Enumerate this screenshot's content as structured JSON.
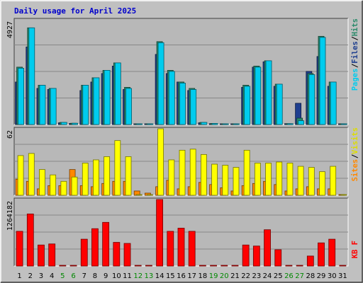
{
  "chart_data": [
    {
      "type": "bar",
      "title": "Daily usage for April 2025",
      "categories": [
        "1",
        "2",
        "3",
        "4",
        "5",
        "6",
        "7",
        "8",
        "9",
        "10",
        "11",
        "12",
        "13",
        "14",
        "15",
        "16",
        "17",
        "18",
        "19",
        "20",
        "21",
        "22",
        "23",
        "24",
        "25",
        "26",
        "27",
        "28",
        "29",
        "30",
        "31"
      ],
      "weekend_days": [
        "5",
        "6",
        "12",
        "13",
        "19",
        "20",
        "26",
        "27"
      ],
      "ymax_label": "4927",
      "ylim": [
        0,
        4927
      ],
      "legend": [
        "Pages",
        "Files",
        "Hits"
      ],
      "series": [
        {
          "name": "Pages",
          "color": "#1f3f8f",
          "values": [
            2000,
            3650,
            1700,
            1650,
            80,
            50,
            1600,
            2000,
            2400,
            2750,
            1650,
            0,
            0,
            3300,
            2400,
            2000,
            1600,
            80,
            40,
            0,
            0,
            1750,
            2700,
            2950,
            1800,
            40,
            1000,
            2500,
            3200,
            1800,
            0
          ]
        },
        {
          "name": "Files",
          "color": "#2a8a6a",
          "values": [
            2700,
            4550,
            1850,
            1700,
            100,
            60,
            1850,
            2200,
            2550,
            2900,
            1750,
            0,
            0,
            3900,
            2550,
            2000,
            1700,
            100,
            50,
            0,
            0,
            1850,
            2750,
            3000,
            1900,
            40,
            300,
            2400,
            4150,
            2000,
            0
          ]
        },
        {
          "name": "Hits",
          "color": "#00ccee",
          "values": [
            2650,
            4550,
            1850,
            1700,
            100,
            60,
            1850,
            2200,
            2550,
            2900,
            1700,
            0,
            0,
            3850,
            2500,
            1950,
            1650,
            100,
            50,
            0,
            0,
            1800,
            2700,
            3000,
            1900,
            40,
            180,
            2350,
            4100,
            2000,
            0
          ]
        }
      ]
    },
    {
      "type": "bar",
      "ymax_label": "62",
      "ylim": [
        0,
        62
      ],
      "legend": [
        "Sites",
        "Visits"
      ],
      "series": [
        {
          "name": "Sites",
          "color": "#ff8800",
          "values": [
            15,
            13,
            6,
            9,
            9,
            24,
            9,
            8,
            11,
            13,
            13,
            4,
            2,
            8,
            14,
            6,
            8,
            12,
            10,
            7,
            4,
            9,
            11,
            13,
            10,
            4,
            6,
            8,
            6,
            6,
            0
          ]
        },
        {
          "name": "Visits",
          "color": "#ffff00",
          "values": [
            37,
            39,
            24,
            19,
            13,
            17,
            30,
            33,
            36,
            51,
            36,
            0,
            0,
            62,
            33,
            42,
            43,
            38,
            29,
            28,
            26,
            42,
            30,
            30,
            31,
            30,
            27,
            26,
            22,
            27,
            0
          ]
        }
      ]
    },
    {
      "type": "bar",
      "ymax_label": "1264182",
      "ylim": [
        0,
        1264182
      ],
      "legend": [
        "KB F"
      ],
      "series": [
        {
          "name": "KB F",
          "color": "#ff0000",
          "values": [
            660000,
            990000,
            400000,
            420000,
            0,
            0,
            510000,
            710000,
            830000,
            450000,
            430000,
            0,
            0,
            1264182,
            660000,
            720000,
            660000,
            0,
            0,
            0,
            0,
            400000,
            380000,
            690000,
            310000,
            0,
            0,
            190000,
            440000,
            510000,
            0
          ]
        }
      ]
    }
  ]
}
